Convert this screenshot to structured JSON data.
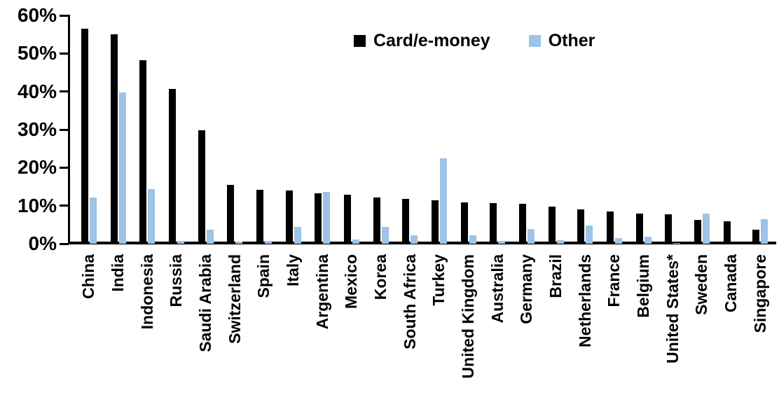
{
  "chart_data": {
    "type": "bar",
    "title": "",
    "xlabel": "",
    "ylabel": "",
    "ylim": [
      0,
      60
    ],
    "ytick_labels": [
      "0%",
      "10%",
      "20%",
      "30%",
      "40%",
      "50%",
      "60%"
    ],
    "grid": false,
    "legend_position": "top-center",
    "categories": [
      "China",
      "India",
      "Indonesia",
      "Russia",
      "Saudi Arabia",
      "Switzerland",
      "Spain",
      "Italy",
      "Argentina",
      "Mexico",
      "Korea",
      "South Africa",
      "Turkey",
      "United Kingdom",
      "Australia",
      "Germany",
      "Brazil",
      "Netherlands",
      "France",
      "Belgium",
      "United States*",
      "Sweden",
      "Canada",
      "Singapore"
    ],
    "series": [
      {
        "name": "Card/e-money",
        "color": "#000000",
        "values": [
          56.5,
          55.1,
          48.3,
          40.6,
          29.8,
          15.5,
          14.1,
          14.0,
          13.3,
          12.8,
          12.1,
          11.7,
          11.4,
          10.9,
          10.6,
          10.5,
          9.8,
          9.1,
          8.5,
          8.0,
          7.7,
          6.3,
          5.8,
          3.7
        ]
      },
      {
        "name": "Other",
        "color": "#9DC3E6",
        "values": [
          12.2,
          39.8,
          14.3,
          0.7,
          3.6,
          0.5,
          0.8,
          4.4,
          13.7,
          1.1,
          4.4,
          2.2,
          22.5,
          2.2,
          0.7,
          3.8,
          0.9,
          4.7,
          1.4,
          1.9,
          0.2,
          7.9,
          0,
          6.5
        ]
      }
    ]
  }
}
